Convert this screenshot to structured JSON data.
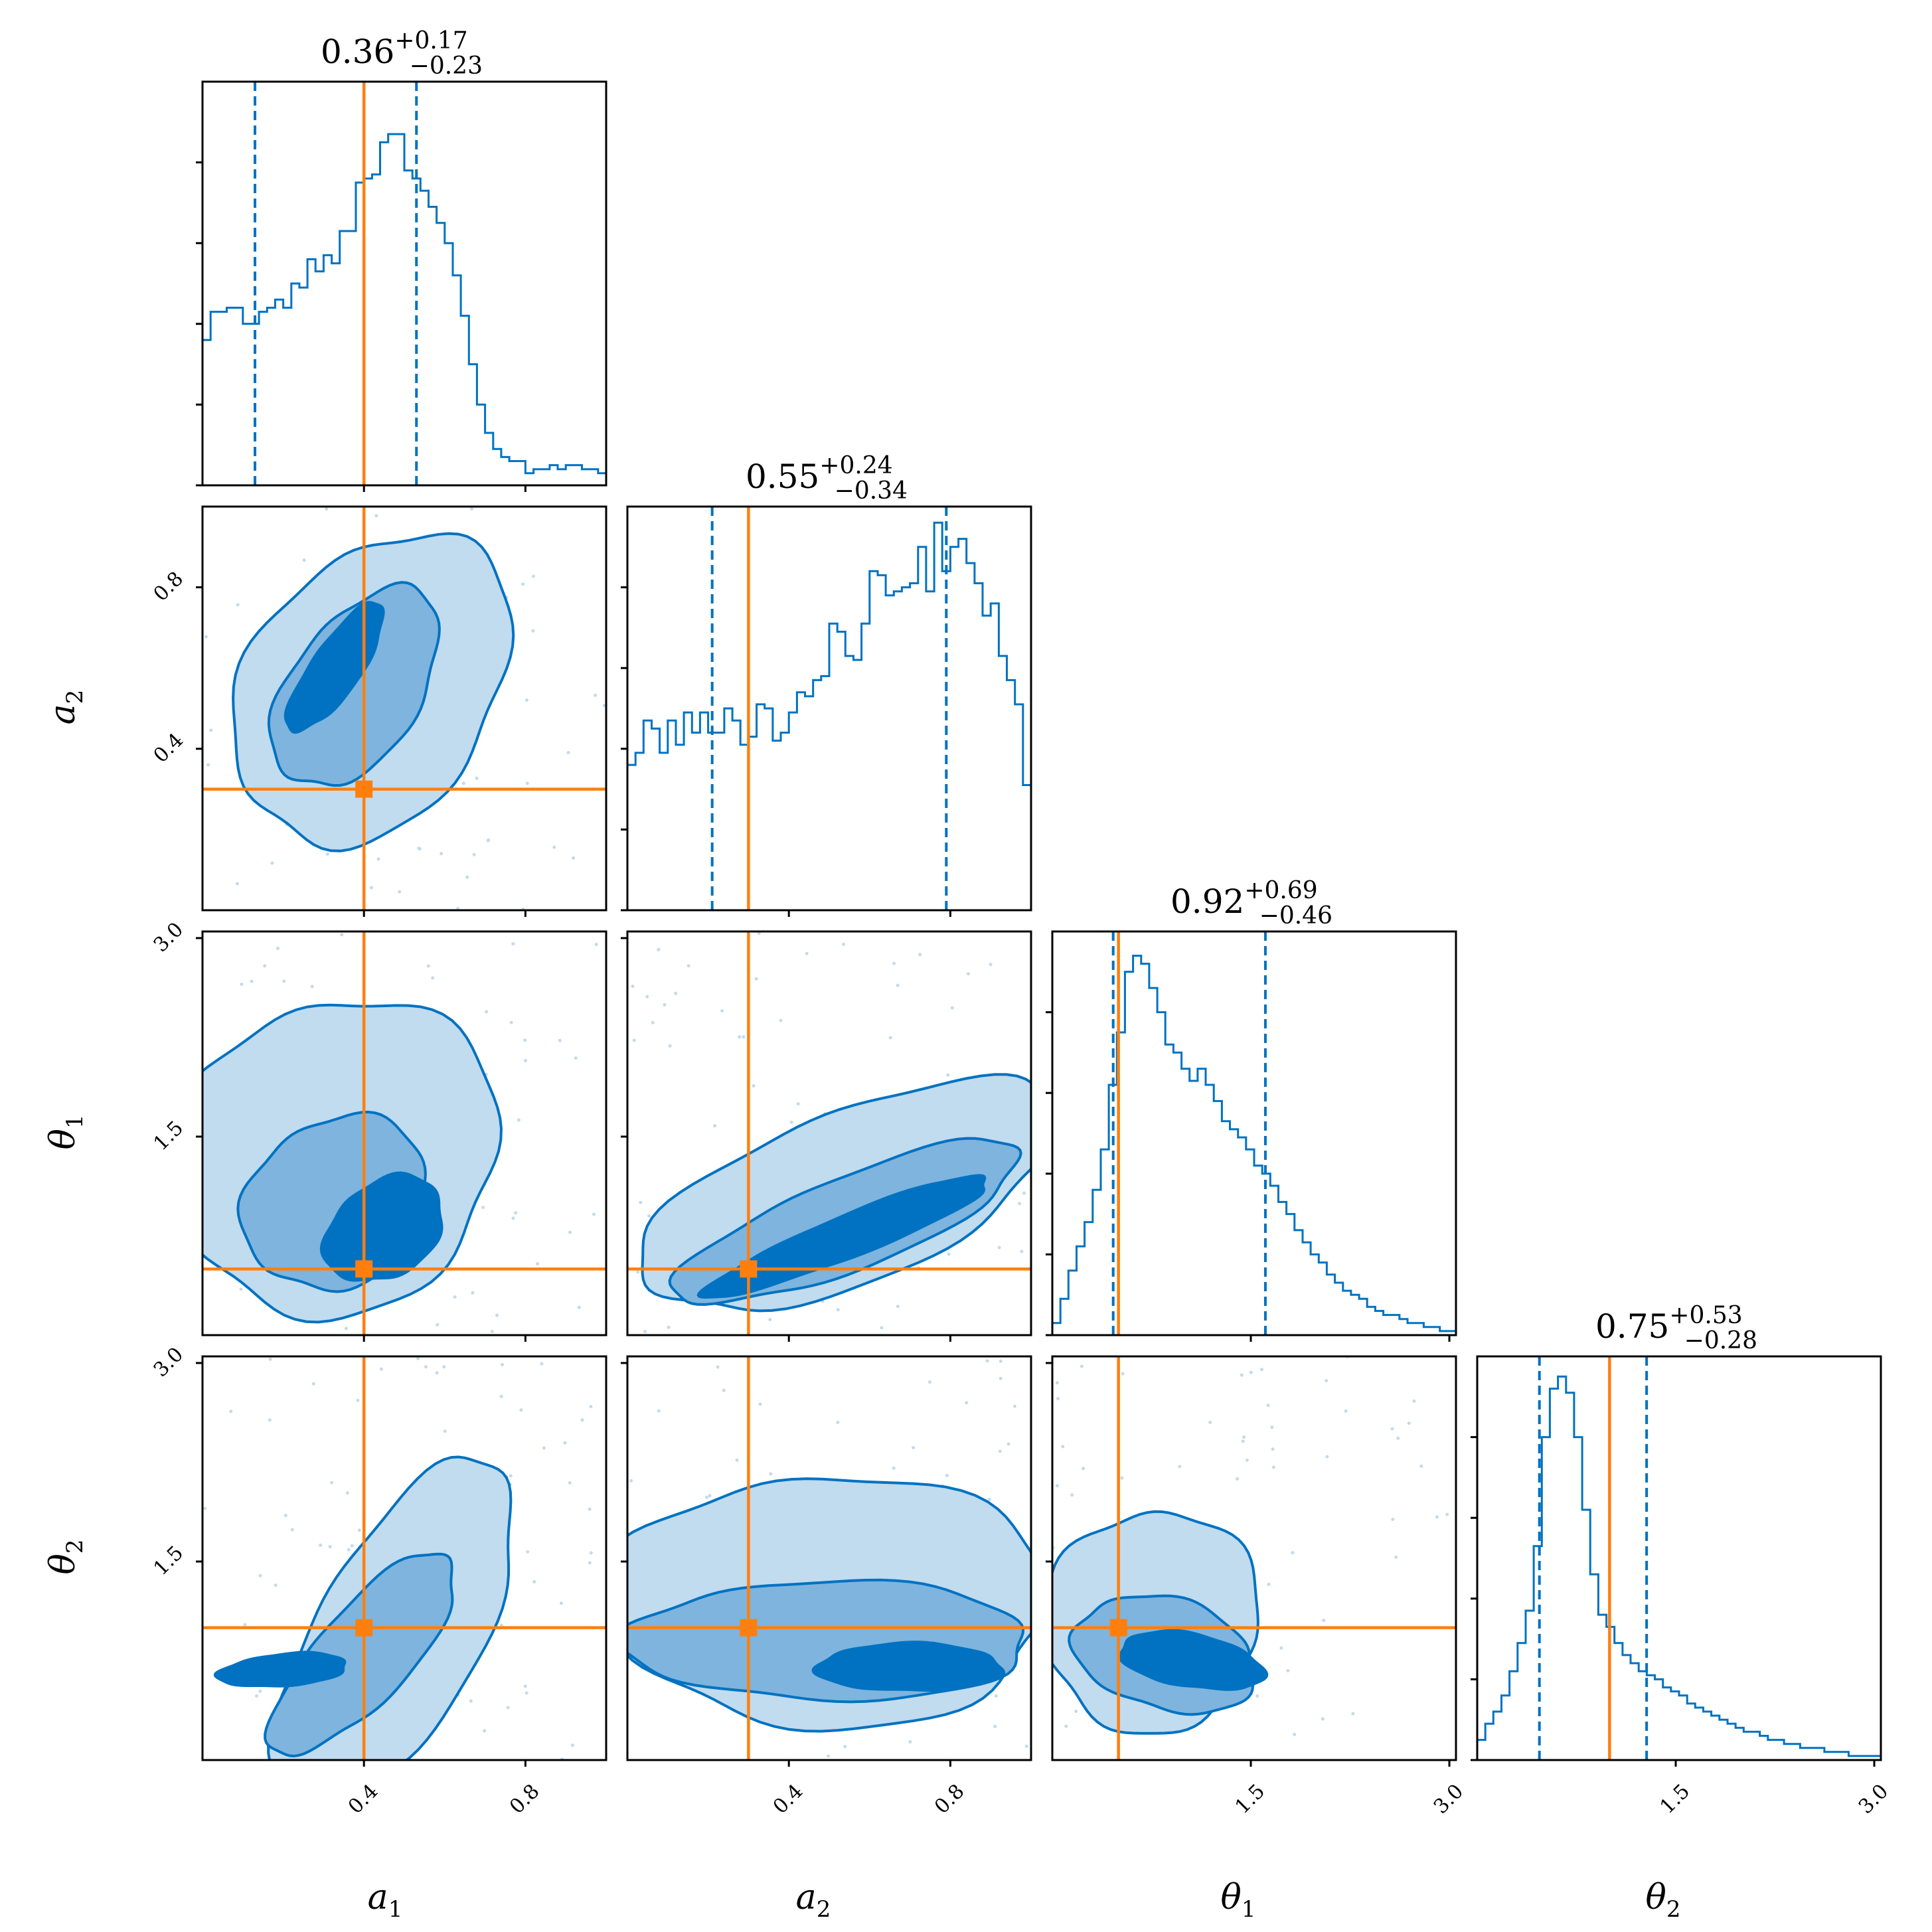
{
  "colors": {
    "main": "#0072c1",
    "truth": "#ff7f0e",
    "level_dark": "#0072c1",
    "level_mid": "#7eb4dd",
    "level_light": "#c1dbef"
  },
  "chart_data": {
    "type": "corner",
    "parameters": [
      {
        "key": "a1",
        "symbol": "a",
        "subscript": "1",
        "range": [
          0.0,
          1.0
        ],
        "ticks": [
          0.4,
          0.8
        ],
        "tick_labels": [
          "0.4",
          "0.8"
        ],
        "truth": 0.4,
        "summary": {
          "median": "0.36",
          "plus": "+0.17",
          "minus": "−0.23"
        },
        "quantiles": [
          0.13,
          0.53
        ]
      },
      {
        "key": "a2",
        "symbol": "a",
        "subscript": "2",
        "range": [
          0.0,
          1.0
        ],
        "ticks": [
          0.4,
          0.8
        ],
        "tick_labels": [
          "0.4",
          "0.8"
        ],
        "truth": 0.3,
        "summary": {
          "median": "0.55",
          "plus": "+0.24",
          "minus": "−0.34"
        },
        "quantiles": [
          0.21,
          0.79
        ]
      },
      {
        "key": "theta1",
        "symbol": "θ",
        "subscript": "1",
        "range": [
          0.0,
          3.05
        ],
        "ticks": [
          1.5,
          3.0
        ],
        "tick_labels": [
          "1.5",
          "3.0"
        ],
        "truth": 0.5,
        "summary": {
          "median": "0.92",
          "plus": "+0.69",
          "minus": "−0.46"
        },
        "quantiles": [
          0.46,
          1.61
        ]
      },
      {
        "key": "theta2",
        "symbol": "θ",
        "subscript": "2",
        "range": [
          0.0,
          3.05
        ],
        "ticks": [
          1.5,
          3.0
        ],
        "tick_labels": [
          "1.5",
          "3.0"
        ],
        "truth": 1.0,
        "summary": {
          "median": "0.75",
          "plus": "+0.53",
          "minus": "−0.28"
        },
        "quantiles": [
          0.47,
          1.28
        ]
      }
    ],
    "histograms": {
      "a1": [
        0.36,
        0.43,
        0.43,
        0.44,
        0.44,
        0.4,
        0.4,
        0.43,
        0.44,
        0.46,
        0.44,
        0.5,
        0.49,
        0.56,
        0.53,
        0.57,
        0.55,
        0.63,
        0.63,
        0.75,
        0.76,
        0.77,
        0.85,
        0.87,
        0.87,
        0.78,
        0.76,
        0.73,
        0.69,
        0.65,
        0.6,
        0.52,
        0.42,
        0.3,
        0.2,
        0.13,
        0.09,
        0.07,
        0.06,
        0.06,
        0.03,
        0.04,
        0.04,
        0.05,
        0.04,
        0.05,
        0.05,
        0.04,
        0.04,
        0.03
      ],
      "a2": [
        0.36,
        0.39,
        0.47,
        0.45,
        0.39,
        0.47,
        0.41,
        0.49,
        0.44,
        0.49,
        0.44,
        0.44,
        0.5,
        0.47,
        0.41,
        0.43,
        0.51,
        0.5,
        0.42,
        0.44,
        0.49,
        0.54,
        0.53,
        0.57,
        0.58,
        0.71,
        0.69,
        0.63,
        0.62,
        0.71,
        0.84,
        0.83,
        0.78,
        0.79,
        0.8,
        0.81,
        0.9,
        0.79,
        0.96,
        0.84,
        0.9,
        0.92,
        0.86,
        0.81,
        0.73,
        0.76,
        0.63,
        0.57,
        0.51,
        0.31
      ],
      "theta1": [
        0.03,
        0.09,
        0.16,
        0.22,
        0.28,
        0.36,
        0.46,
        0.62,
        0.75,
        0.9,
        0.94,
        0.92,
        0.86,
        0.8,
        0.72,
        0.7,
        0.66,
        0.63,
        0.66,
        0.62,
        0.58,
        0.53,
        0.51,
        0.49,
        0.46,
        0.42,
        0.4,
        0.37,
        0.33,
        0.3,
        0.26,
        0.23,
        0.2,
        0.18,
        0.15,
        0.13,
        0.11,
        0.1,
        0.09,
        0.07,
        0.06,
        0.05,
        0.05,
        0.04,
        0.03,
        0.03,
        0.02,
        0.02,
        0.01,
        0.01
      ],
      "theta2": [
        0.05,
        0.09,
        0.12,
        0.16,
        0.22,
        0.29,
        0.37,
        0.53,
        0.8,
        0.92,
        0.95,
        0.91,
        0.8,
        0.62,
        0.46,
        0.36,
        0.33,
        0.29,
        0.26,
        0.24,
        0.22,
        0.21,
        0.2,
        0.18,
        0.17,
        0.16,
        0.14,
        0.13,
        0.12,
        0.11,
        0.1,
        0.09,
        0.08,
        0.07,
        0.07,
        0.06,
        0.05,
        0.05,
        0.04,
        0.04,
        0.03,
        0.03,
        0.03,
        0.02,
        0.02,
        0.02,
        0.01,
        0.01,
        0.01,
        0.01
      ]
    }
  }
}
